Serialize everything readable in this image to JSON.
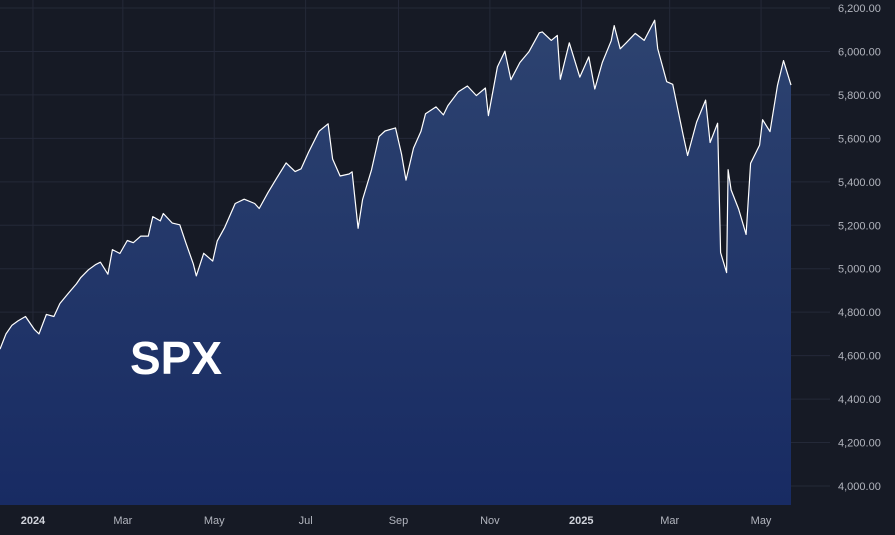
{
  "colors": {
    "background": "#161a25",
    "line": "#ffffff",
    "area_top": "#2d4370",
    "area_bottom": "#182b63",
    "grid": "#242938",
    "text": "#b2b5be"
  },
  "chart_data": {
    "type": "area",
    "title": "SPX",
    "xlabel": "",
    "ylabel": "",
    "grid": true,
    "ylim": [
      3900,
      6200
    ],
    "y_ticks": [
      "6,200.00",
      "6,000.00",
      "5,800.00",
      "5,600.00",
      "5,400.00",
      "5,200.00",
      "5,000.00",
      "4,800.00",
      "4,600.00",
      "4,400.00",
      "4,200.00",
      "4,000.00"
    ],
    "y_tick_values": [
      6200,
      6000,
      5800,
      5600,
      5400,
      5200,
      5000,
      4800,
      4600,
      4400,
      4200,
      4000
    ],
    "x_range": [
      "2023-12-10",
      "2025-05-31"
    ],
    "x_ticks": [
      {
        "label": "2024",
        "date": "2024-01-01",
        "bold": true
      },
      {
        "label": "Mar",
        "date": "2024-03-01",
        "bold": false
      },
      {
        "label": "May",
        "date": "2024-05-01",
        "bold": false
      },
      {
        "label": "Jul",
        "date": "2024-07-01",
        "bold": false
      },
      {
        "label": "Sep",
        "date": "2024-09-01",
        "bold": false
      },
      {
        "label": "Nov",
        "date": "2024-11-01",
        "bold": false
      },
      {
        "label": "2025",
        "date": "2025-01-01",
        "bold": true
      },
      {
        "label": "Mar",
        "date": "2025-03-01",
        "bold": false
      },
      {
        "label": "May",
        "date": "2025-05-01",
        "bold": false
      }
    ],
    "series": [
      {
        "values": [
          [
            "2023-12-10",
            4630
          ],
          [
            "2023-12-14",
            4700
          ],
          [
            "2023-12-18",
            4740
          ],
          [
            "2023-12-22",
            4760
          ],
          [
            "2023-12-27",
            4780
          ],
          [
            "2024-01-02",
            4720
          ],
          [
            "2024-01-05",
            4700
          ],
          [
            "2024-01-10",
            4790
          ],
          [
            "2024-01-15",
            4780
          ],
          [
            "2024-01-19",
            4840
          ],
          [
            "2024-01-25",
            4890
          ],
          [
            "2024-01-30",
            4930
          ],
          [
            "2024-02-02",
            4960
          ],
          [
            "2024-02-07",
            4995
          ],
          [
            "2024-02-12",
            5020
          ],
          [
            "2024-02-15",
            5030
          ],
          [
            "2024-02-20",
            4975
          ],
          [
            "2024-02-23",
            5088
          ],
          [
            "2024-02-28",
            5070
          ],
          [
            "2024-03-04",
            5130
          ],
          [
            "2024-03-08",
            5120
          ],
          [
            "2024-03-13",
            5150
          ],
          [
            "2024-03-18",
            5150
          ],
          [
            "2024-03-21",
            5240
          ],
          [
            "2024-03-26",
            5220
          ],
          [
            "2024-03-28",
            5254
          ],
          [
            "2024-04-03",
            5210
          ],
          [
            "2024-04-08",
            5202
          ],
          [
            "2024-04-12",
            5120
          ],
          [
            "2024-04-17",
            5022
          ],
          [
            "2024-04-19",
            4967
          ],
          [
            "2024-04-24",
            5071
          ],
          [
            "2024-04-30",
            5035
          ],
          [
            "2024-05-03",
            5127
          ],
          [
            "2024-05-08",
            5190
          ],
          [
            "2024-05-15",
            5300
          ],
          [
            "2024-05-21",
            5320
          ],
          [
            "2024-05-28",
            5300
          ],
          [
            "2024-05-31",
            5277
          ],
          [
            "2024-06-06",
            5352
          ],
          [
            "2024-06-12",
            5421
          ],
          [
            "2024-06-18",
            5487
          ],
          [
            "2024-06-24",
            5447
          ],
          [
            "2024-06-28",
            5460
          ],
          [
            "2024-07-03",
            5537
          ],
          [
            "2024-07-10",
            5633
          ],
          [
            "2024-07-16",
            5667
          ],
          [
            "2024-07-19",
            5505
          ],
          [
            "2024-07-24",
            5427
          ],
          [
            "2024-07-30",
            5436
          ],
          [
            "2024-08-01",
            5446
          ],
          [
            "2024-08-05",
            5186
          ],
          [
            "2024-08-08",
            5319
          ],
          [
            "2024-08-14",
            5455
          ],
          [
            "2024-08-19",
            5608
          ],
          [
            "2024-08-23",
            5634
          ],
          [
            "2024-08-30",
            5648
          ],
          [
            "2024-09-03",
            5528
          ],
          [
            "2024-09-06",
            5408
          ],
          [
            "2024-09-11",
            5555
          ],
          [
            "2024-09-16",
            5633
          ],
          [
            "2024-09-19",
            5713
          ],
          [
            "2024-09-26",
            5745
          ],
          [
            "2024-10-01",
            5708
          ],
          [
            "2024-10-04",
            5751
          ],
          [
            "2024-10-11",
            5815
          ],
          [
            "2024-10-17",
            5841
          ],
          [
            "2024-10-23",
            5797
          ],
          [
            "2024-10-29",
            5832
          ],
          [
            "2024-10-31",
            5705
          ],
          [
            "2024-11-06",
            5929
          ],
          [
            "2024-11-11",
            6001
          ],
          [
            "2024-11-15",
            5870
          ],
          [
            "2024-11-21",
            5949
          ],
          [
            "2024-11-27",
            5998
          ],
          [
            "2024-12-04",
            6086
          ],
          [
            "2024-12-06",
            6090
          ],
          [
            "2024-12-12",
            6051
          ],
          [
            "2024-12-16",
            6074
          ],
          [
            "2024-12-18",
            5872
          ],
          [
            "2024-12-24",
            6040
          ],
          [
            "2024-12-31",
            5882
          ],
          [
            "2025-01-06",
            5975
          ],
          [
            "2025-01-10",
            5827
          ],
          [
            "2025-01-15",
            5949
          ],
          [
            "2025-01-21",
            6049
          ],
          [
            "2025-01-23",
            6119
          ],
          [
            "2025-01-27",
            6012
          ],
          [
            "2025-01-31",
            6040
          ],
          [
            "2025-02-06",
            6083
          ],
          [
            "2025-02-12",
            6051
          ],
          [
            "2025-02-19",
            6144
          ],
          [
            "2025-02-21",
            6013
          ],
          [
            "2025-02-27",
            5861
          ],
          [
            "2025-03-03",
            5849
          ],
          [
            "2025-03-10",
            5614
          ],
          [
            "2025-03-13",
            5521
          ],
          [
            "2025-03-19",
            5675
          ],
          [
            "2025-03-25",
            5776
          ],
          [
            "2025-03-28",
            5581
          ],
          [
            "2025-04-02",
            5670
          ],
          [
            "2025-04-04",
            5074
          ],
          [
            "2025-04-08",
            4982
          ],
          [
            "2025-04-09",
            5456
          ],
          [
            "2025-04-11",
            5363
          ],
          [
            "2025-04-16",
            5275
          ],
          [
            "2025-04-21",
            5158
          ],
          [
            "2025-04-24",
            5485
          ],
          [
            "2025-04-30",
            5569
          ],
          [
            "2025-05-02",
            5686
          ],
          [
            "2025-05-07",
            5631
          ],
          [
            "2025-05-12",
            5844
          ],
          [
            "2025-05-16",
            5958
          ],
          [
            "2025-05-21",
            5845
          ]
        ]
      }
    ]
  }
}
